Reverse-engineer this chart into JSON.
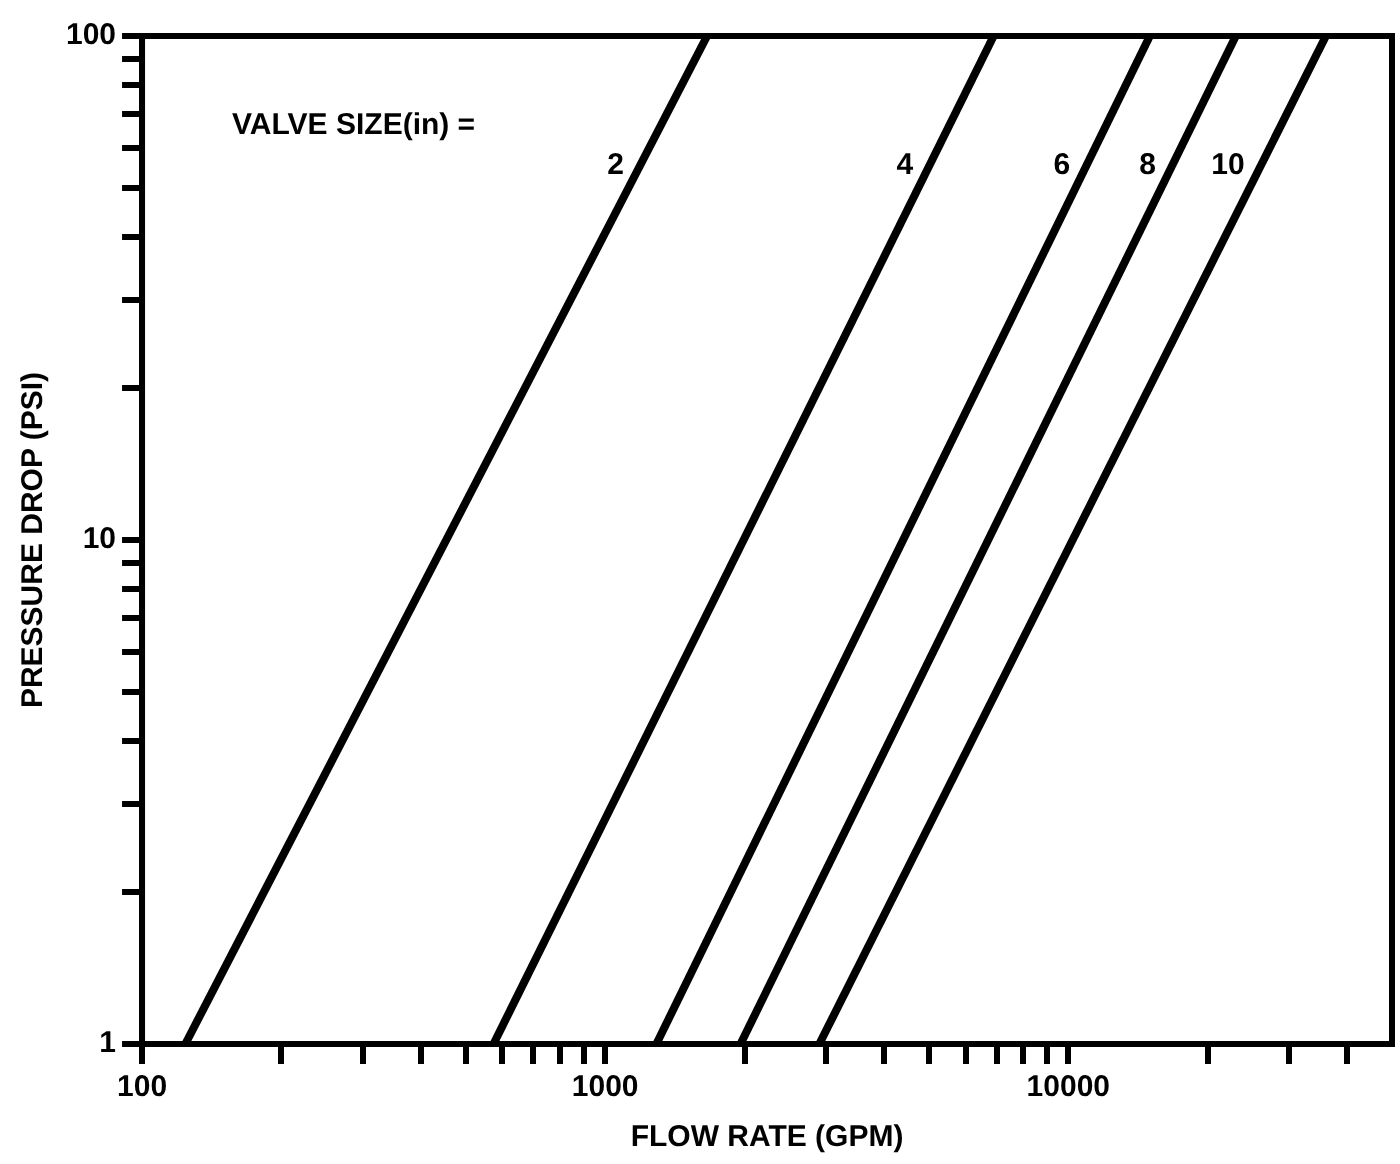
{
  "chart_data": {
    "type": "line",
    "xlabel": "FLOW RATE (GPM)",
    "ylabel": "PRESSURE DROP (PSI)",
    "legend_title": "VALVE SIZE(in) =",
    "log": "xy",
    "grid": false,
    "legend": false,
    "marker": "none",
    "line_style": "solid",
    "xlim": [
      100,
      50000
    ],
    "ylim": [
      1,
      100
    ],
    "xticks": [
      100,
      {
        "value": 200,
        "label": null
      },
      {
        "value": 300,
        "label": null
      },
      {
        "value": 400,
        "label": null
      },
      {
        "value": 500,
        "label": null
      },
      {
        "value": 600,
        "label": null
      },
      {
        "value": 700,
        "label": null
      },
      {
        "value": 800,
        "label": null
      },
      {
        "value": 900,
        "label": null
      },
      1000,
      {
        "value": 2000,
        "label": null
      },
      {
        "value": 3000,
        "label": null
      },
      {
        "value": 4000,
        "label": null
      },
      {
        "value": 5000,
        "label": null
      },
      {
        "value": 6000,
        "label": null
      },
      {
        "value": 7000,
        "label": null
      },
      {
        "value": 8000,
        "label": null
      },
      {
        "value": 9000,
        "label": null
      },
      10000,
      {
        "value": 20000,
        "label": null
      },
      {
        "value": 30000,
        "label": null
      },
      {
        "value": 40000,
        "label": null
      }
    ],
    "yticks": [
      1,
      {
        "value": 2,
        "label": null
      },
      {
        "value": 3,
        "label": null
      },
      {
        "value": 4,
        "label": null
      },
      {
        "value": 5,
        "label": null
      },
      {
        "value": 6,
        "label": null
      },
      {
        "value": 7,
        "label": null
      },
      {
        "value": 8,
        "label": null
      },
      {
        "value": 9,
        "label": null
      },
      10,
      {
        "value": 20,
        "label": null
      },
      {
        "value": 30,
        "label": null
      },
      {
        "value": 40,
        "label": null
      },
      {
        "value": 50,
        "label": null
      },
      {
        "value": 60,
        "label": null
      },
      {
        "value": 70,
        "label": null
      },
      {
        "value": 80,
        "label": null
      },
      {
        "value": 90,
        "label": null
      },
      100
    ],
    "series": [
      {
        "name": "2",
        "color": "#000000",
        "x": [
          124,
          1660
        ],
        "values": [
          1,
          100
        ]
      },
      {
        "name": "4",
        "color": "#000000",
        "x": [
          574,
          6900
        ],
        "values": [
          1,
          100
        ]
      },
      {
        "name": "6",
        "color": "#000000",
        "x": [
          1290,
          15000
        ],
        "values": [
          1,
          100
        ]
      },
      {
        "name": "8",
        "color": "#000000",
        "x": [
          1960,
          23000
        ],
        "values": [
          1,
          100
        ]
      },
      {
        "name": "10",
        "color": "#000000",
        "x": [
          2900,
          36000
        ],
        "values": [
          1,
          100
        ]
      }
    ]
  }
}
